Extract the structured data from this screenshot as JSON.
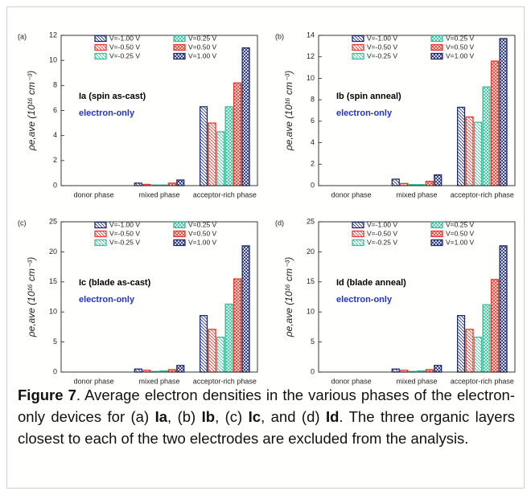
{
  "chart_data": [
    {
      "type": "bar",
      "panel_label": "(a)",
      "y_label": "ρe,ave (10¹⁶ cm⁻³)",
      "annotations": [
        {
          "text": "Ia (spin as-cast)",
          "color": "#000000"
        },
        {
          "text": "electron-only",
          "color": "#2233cc"
        }
      ],
      "categories": [
        "donor phase",
        "mixed phase",
        "acceptor-rich phase"
      ],
      "ylim": [
        0,
        12
      ],
      "yticks": [
        0,
        2,
        4,
        6,
        8,
        10,
        12
      ],
      "series": [
        {
          "name": "V=-1.00 V",
          "color": "#1c2a6e",
          "hatch": "diagonal",
          "values": [
            0,
            0.2,
            6.3
          ]
        },
        {
          "name": "V=-0.50 V",
          "color": "#e8392c",
          "hatch": "diagonal",
          "values": [
            0,
            0.1,
            5.0
          ]
        },
        {
          "name": "V=-0.25 V",
          "color": "#3dbd9c",
          "hatch": "diagonal",
          "values": [
            0,
            0.05,
            4.3
          ]
        },
        {
          "name": "V=0.25 V",
          "color": "#3dbd9c",
          "hatch": "cross",
          "values": [
            0,
            0.05,
            6.3
          ]
        },
        {
          "name": "V=0.50 V",
          "color": "#e8392c",
          "hatch": "cross",
          "values": [
            0,
            0.2,
            8.2
          ]
        },
        {
          "name": "V=1.00 V",
          "color": "#1c2a6e",
          "hatch": "cross",
          "values": [
            0,
            0.45,
            11.0
          ]
        }
      ]
    },
    {
      "type": "bar",
      "panel_label": "(b)",
      "y_label": "ρe,ave (10¹⁶ cm⁻³)",
      "annotations": [
        {
          "text": "Ib (spin anneal)",
          "color": "#000000"
        },
        {
          "text": "electron-only",
          "color": "#2233cc"
        }
      ],
      "categories": [
        "donor phase",
        "mixed phase",
        "acceptor-rich phase"
      ],
      "ylim": [
        0,
        14
      ],
      "yticks": [
        0,
        2,
        4,
        6,
        8,
        10,
        12,
        14
      ],
      "series": [
        {
          "name": "V=-1.00 V",
          "color": "#1c2a6e",
          "hatch": "diagonal",
          "values": [
            0,
            0.6,
            7.3
          ]
        },
        {
          "name": "V=-0.50 V",
          "color": "#e8392c",
          "hatch": "diagonal",
          "values": [
            0,
            0.2,
            6.4
          ]
        },
        {
          "name": "V=-0.25 V",
          "color": "#3dbd9c",
          "hatch": "diagonal",
          "values": [
            0,
            0.1,
            5.9
          ]
        },
        {
          "name": "V=0.25 V",
          "color": "#3dbd9c",
          "hatch": "cross",
          "values": [
            0,
            0.1,
            9.2
          ]
        },
        {
          "name": "V=0.50 V",
          "color": "#e8392c",
          "hatch": "cross",
          "values": [
            0,
            0.4,
            11.6
          ]
        },
        {
          "name": "V=1.00 V",
          "color": "#1c2a6e",
          "hatch": "cross",
          "values": [
            0,
            1.0,
            13.7
          ]
        }
      ]
    },
    {
      "type": "bar",
      "panel_label": "(c)",
      "y_label": "ρe,ave (10¹⁶ cm⁻³)",
      "annotations": [
        {
          "text": "Ic (blade as-cast)",
          "color": "#000000"
        },
        {
          "text": "electron-only",
          "color": "#2233cc"
        }
      ],
      "categories": [
        "donor phase",
        "mixed phase",
        "acceptor-rich phase"
      ],
      "ylim": [
        0,
        25
      ],
      "yticks": [
        0,
        5,
        10,
        15,
        20,
        25
      ],
      "series": [
        {
          "name": "V=-1.00 V",
          "color": "#1c2a6e",
          "hatch": "diagonal",
          "values": [
            0,
            0.5,
            9.4
          ]
        },
        {
          "name": "V=-0.50 V",
          "color": "#e8392c",
          "hatch": "diagonal",
          "values": [
            0,
            0.3,
            7.1
          ]
        },
        {
          "name": "V=-0.25 V",
          "color": "#3dbd9c",
          "hatch": "diagonal",
          "values": [
            0,
            0.1,
            5.8
          ]
        },
        {
          "name": "V=0.25 V",
          "color": "#3dbd9c",
          "hatch": "cross",
          "values": [
            0,
            0.2,
            11.3
          ]
        },
        {
          "name": "V=0.50 V",
          "color": "#e8392c",
          "hatch": "cross",
          "values": [
            0,
            0.4,
            15.5
          ]
        },
        {
          "name": "V=1.00 V",
          "color": "#1c2a6e",
          "hatch": "cross",
          "values": [
            0,
            1.1,
            21.0
          ]
        }
      ]
    },
    {
      "type": "bar",
      "panel_label": "(d)",
      "y_label": "ρe,ave (10¹⁶ cm⁻³)",
      "annotations": [
        {
          "text": "Id (blade anneal)",
          "color": "#000000"
        },
        {
          "text": "electron-only",
          "color": "#2233cc"
        }
      ],
      "categories": [
        "donor phase",
        "mixed phase",
        "acceptor-rich phase"
      ],
      "ylim": [
        0,
        25
      ],
      "yticks": [
        0,
        5,
        10,
        15,
        20,
        25
      ],
      "series": [
        {
          "name": "V=-1.00 V",
          "color": "#1c2a6e",
          "hatch": "diagonal",
          "values": [
            0,
            0.5,
            9.4
          ]
        },
        {
          "name": "V=-0.50 V",
          "color": "#e8392c",
          "hatch": "diagonal",
          "values": [
            0,
            0.3,
            7.1
          ]
        },
        {
          "name": "V=-0.25 V",
          "color": "#3dbd9c",
          "hatch": "diagonal",
          "values": [
            0,
            0.1,
            5.8
          ]
        },
        {
          "name": "V=0.25 V",
          "color": "#3dbd9c",
          "hatch": "cross",
          "values": [
            0,
            0.2,
            11.2
          ]
        },
        {
          "name": "V=0.50 V",
          "color": "#e8392c",
          "hatch": "cross",
          "values": [
            0,
            0.4,
            15.4
          ]
        },
        {
          "name": "V=1.00 V",
          "color": "#1c2a6e",
          "hatch": "cross",
          "values": [
            0,
            1.1,
            21.0
          ]
        }
      ]
    }
  ],
  "caption": [
    {
      "text": "Figure 7",
      "bold": true
    },
    {
      "text": ". Average electron densities in the various phases of the electron-only devices for (a) "
    },
    {
      "text": "Ia",
      "bold": true
    },
    {
      "text": ", (b) "
    },
    {
      "text": "Ib",
      "bold": true
    },
    {
      "text": ", (c) "
    },
    {
      "text": "Ic",
      "bold": true
    },
    {
      "text": ", and (d) "
    },
    {
      "text": "Id",
      "bold": true
    },
    {
      "text": ". The three organic layers closest to each of the two electrodes are excluded from the analysis."
    }
  ]
}
